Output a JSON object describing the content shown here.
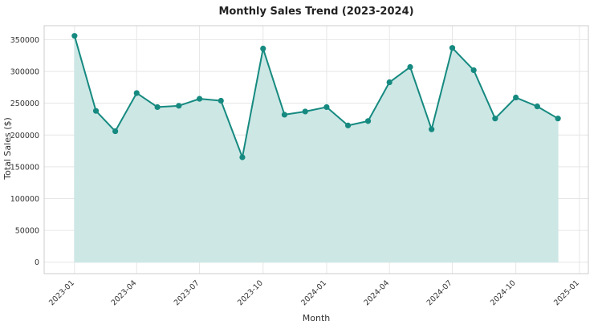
{
  "chart_data": {
    "type": "area",
    "title": "Monthly Sales Trend (2023-2024)",
    "xlabel": "Month",
    "ylabel": "Total Sales ($)",
    "x": [
      "2023-01",
      "2023-02",
      "2023-03",
      "2023-04",
      "2023-05",
      "2023-06",
      "2023-07",
      "2023-08",
      "2023-09",
      "2023-10",
      "2023-11",
      "2023-12",
      "2024-01",
      "2024-02",
      "2024-03",
      "2024-04",
      "2024-05",
      "2024-06",
      "2024-07",
      "2024-08",
      "2024-09",
      "2024-10",
      "2024-11",
      "2024-12"
    ],
    "series": [
      {
        "values": [
          356000,
          238000,
          206000,
          266000,
          244000,
          246000,
          257000,
          254000,
          165000,
          336000,
          232000,
          237000,
          244000,
          215000,
          222000,
          283000,
          307000,
          209000,
          337000,
          302000,
          226000,
          259000,
          245000,
          226000
        ],
        "line_color": "#168a80",
        "fill_color": "#cde7e5"
      }
    ],
    "x_ticks": [
      "2023-01",
      "2023-04",
      "2023-07",
      "2023-10",
      "2024-01",
      "2024-04",
      "2024-07",
      "2024-10",
      "2025-01"
    ],
    "y_ticks": [
      0,
      50000,
      100000,
      150000,
      200000,
      250000,
      300000,
      350000
    ],
    "ylim": [
      -18000,
      372000
    ],
    "xlim": [
      "2022-11-18",
      "2025-01-14"
    ],
    "grid": true,
    "legend": false
  }
}
